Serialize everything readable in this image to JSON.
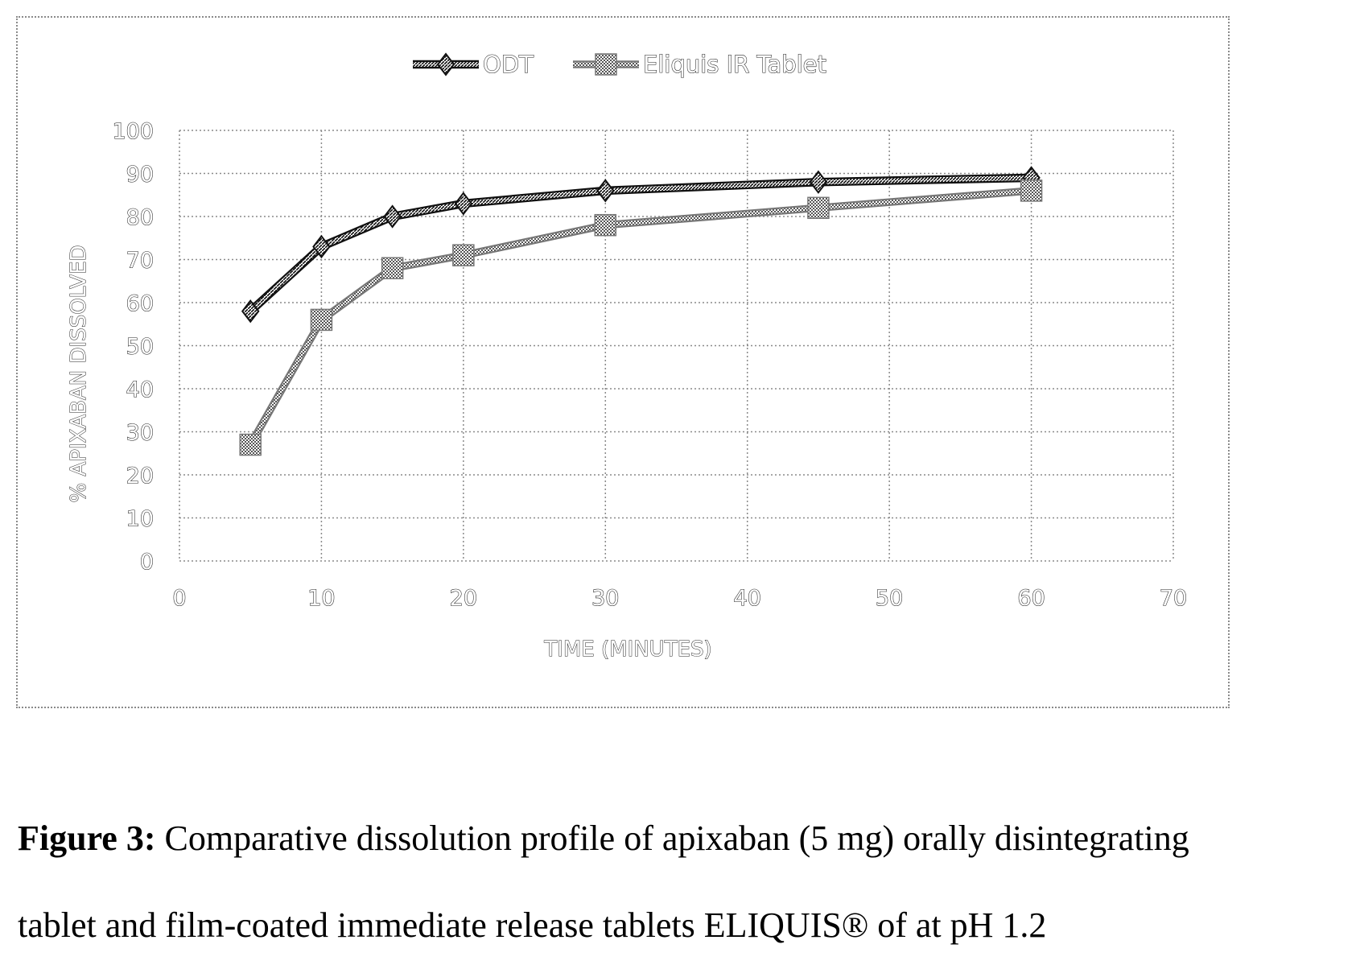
{
  "chart_data": {
    "type": "line",
    "xlabel": "TIME (MINUTES)",
    "ylabel": "% APIXABAN DISSOLVED",
    "xlim": [
      0,
      70
    ],
    "ylim": [
      0,
      100
    ],
    "xticks": [
      0,
      10,
      20,
      30,
      40,
      50,
      60,
      70
    ],
    "yticks": [
      0,
      10,
      20,
      30,
      40,
      50,
      60,
      70,
      80,
      90,
      100
    ],
    "grid": true,
    "legend": "top-center",
    "series": [
      {
        "name": "ODT",
        "marker": "diamond",
        "color": "#333333",
        "x": [
          5,
          10,
          15,
          20,
          30,
          45,
          60
        ],
        "y": [
          58,
          73,
          80,
          83,
          86,
          88,
          89
        ]
      },
      {
        "name": "Eliquis IR Tablet",
        "marker": "square",
        "color": "#9a9a9a",
        "x": [
          5,
          10,
          15,
          20,
          30,
          45,
          60
        ],
        "y": [
          27,
          56,
          68,
          71,
          78,
          82,
          86
        ]
      }
    ]
  },
  "caption": {
    "label": "Figure 3:",
    "line1": " Comparative dissolution profile of apixaban (5 mg) orally disintegrating",
    "line2": "tablet and film-coated immediate release tablets ELIQUIS® of at pH 1.2"
  }
}
